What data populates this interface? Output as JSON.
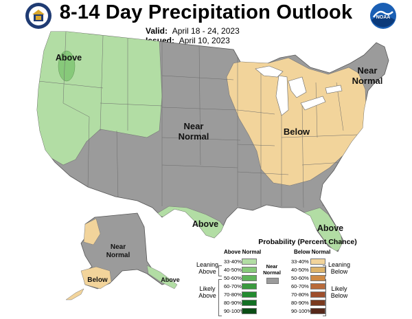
{
  "title": "8-14 Day Precipitation Outlook",
  "valid": {
    "label": "Valid:",
    "value": "April 18 - 24, 2023"
  },
  "issued": {
    "label": "Issued:",
    "value": "April 10, 2023"
  },
  "logos": {
    "left": "commerce-seal-icon",
    "right": "noaa-logo-icon",
    "right_text": "NOAA"
  },
  "colors": {
    "above_33_40": "#b2dda4",
    "above_40_50": "#87c97a",
    "near_normal": "#9b9b9b",
    "below_33_40": "#f2d49b",
    "ocean": "#ffffff",
    "great_lakes": "#ffffff"
  },
  "map_labels": {
    "above_nw": "Above",
    "near_normal_central_1": "Near",
    "near_normal_central_2": "Normal",
    "near_normal_ne_1": "Near",
    "near_normal_ne_2": "Normal",
    "below_east": "Below",
    "above_texas": "Above",
    "above_florida": "Above",
    "alaska_near_1": "Near",
    "alaska_near_2": "Normal",
    "alaska_below": "Below",
    "aleutian_above": "Above"
  },
  "legend": {
    "title": "Probability (Percent Chance)",
    "above_head": "Above Normal",
    "below_head": "Below Normal",
    "near_label_1": "Near",
    "near_label_2": "Normal",
    "leaning_above_1": "Leaning",
    "leaning_above_2": "Above",
    "likely_above_1": "Likely",
    "likely_above_2": "Above",
    "leaning_below_1": "Leaning",
    "leaning_below_2": "Below",
    "likely_below_1": "Likely",
    "likely_below_2": "Below",
    "above_rows": [
      {
        "range": "33-40%",
        "color": "#b2dda4"
      },
      {
        "range": "40-50%",
        "color": "#87c97a"
      },
      {
        "range": "50-60%",
        "color": "#5fb45a"
      },
      {
        "range": "60-70%",
        "color": "#3a9a3e"
      },
      {
        "range": "70-80%",
        "color": "#238b30"
      },
      {
        "range": "80-90%",
        "color": "#137024"
      },
      {
        "range": "90-100%",
        "color": "#0a4d15"
      }
    ],
    "below_rows": [
      {
        "range": "33-40%",
        "color": "#f2d49b"
      },
      {
        "range": "40-50%",
        "color": "#ddb36a"
      },
      {
        "range": "50-60%",
        "color": "#cf8a45"
      },
      {
        "range": "60-70%",
        "color": "#b96a3a"
      },
      {
        "range": "70-80%",
        "color": "#9e4e2c"
      },
      {
        "range": "80-90%",
        "color": "#7a3a1f"
      },
      {
        "range": "90-100%",
        "color": "#56281a"
      }
    ]
  }
}
